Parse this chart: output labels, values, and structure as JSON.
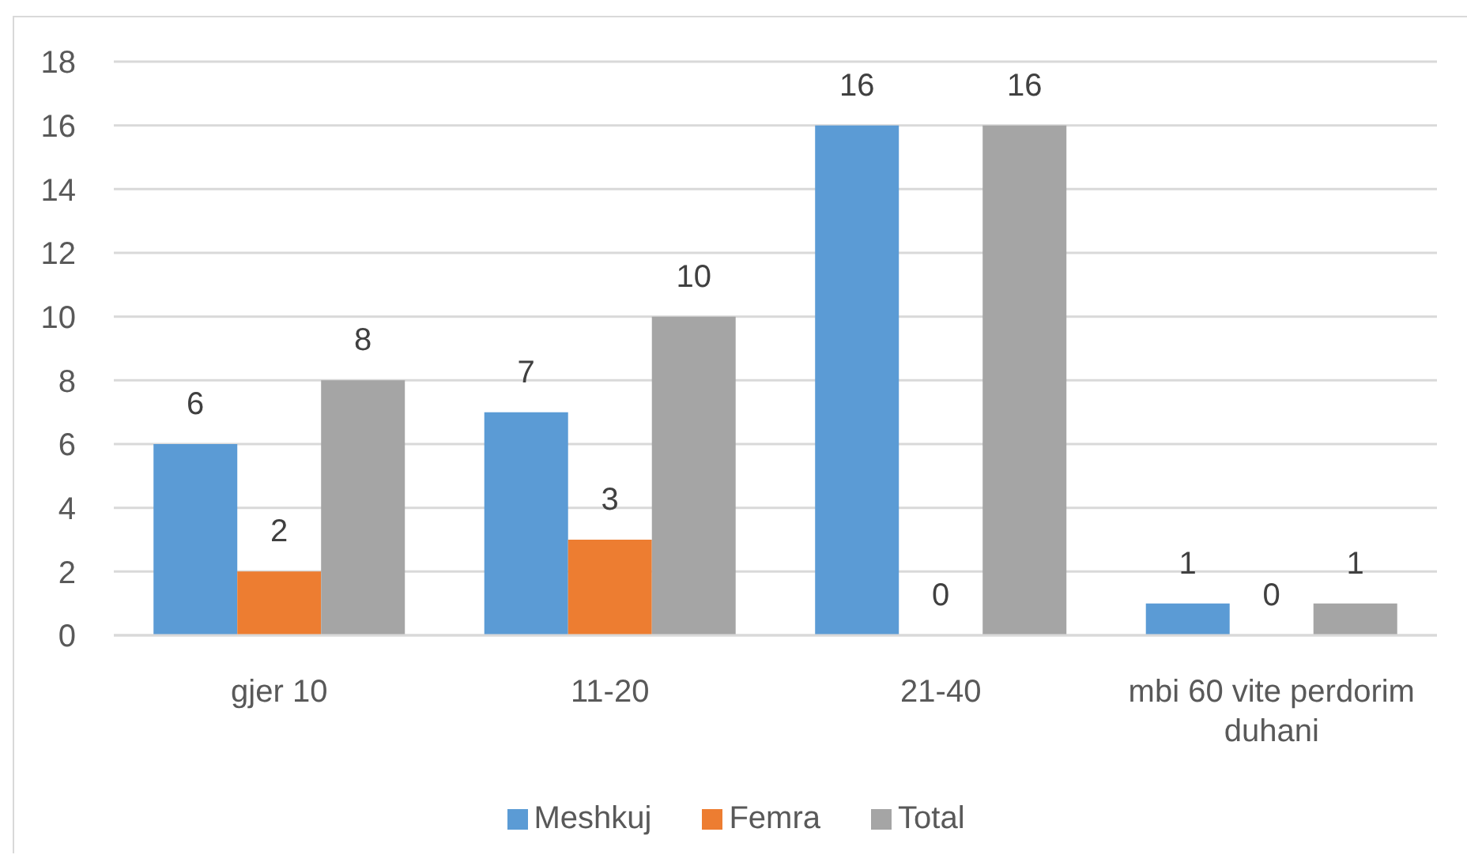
{
  "chart_data": {
    "type": "bar",
    "categories": [
      "gjer 10",
      "11-20",
      "21-40",
      "mbi 60 vite perdorim duhani"
    ],
    "series": [
      {
        "name": "Meshkuj",
        "color": "#5b9bd5",
        "values": [
          6,
          7,
          16,
          1
        ]
      },
      {
        "name": "Femra",
        "color": "#ed7d31",
        "values": [
          2,
          3,
          0,
          0
        ]
      },
      {
        "name": "Total",
        "color": "#a5a5a5",
        "values": [
          8,
          10,
          16,
          1
        ]
      }
    ],
    "ylim": [
      0,
      18
    ],
    "yticks": [
      0,
      2,
      4,
      6,
      8,
      10,
      12,
      14,
      16,
      18
    ],
    "grid": "y",
    "legend": "bottom",
    "data_labels": true
  }
}
